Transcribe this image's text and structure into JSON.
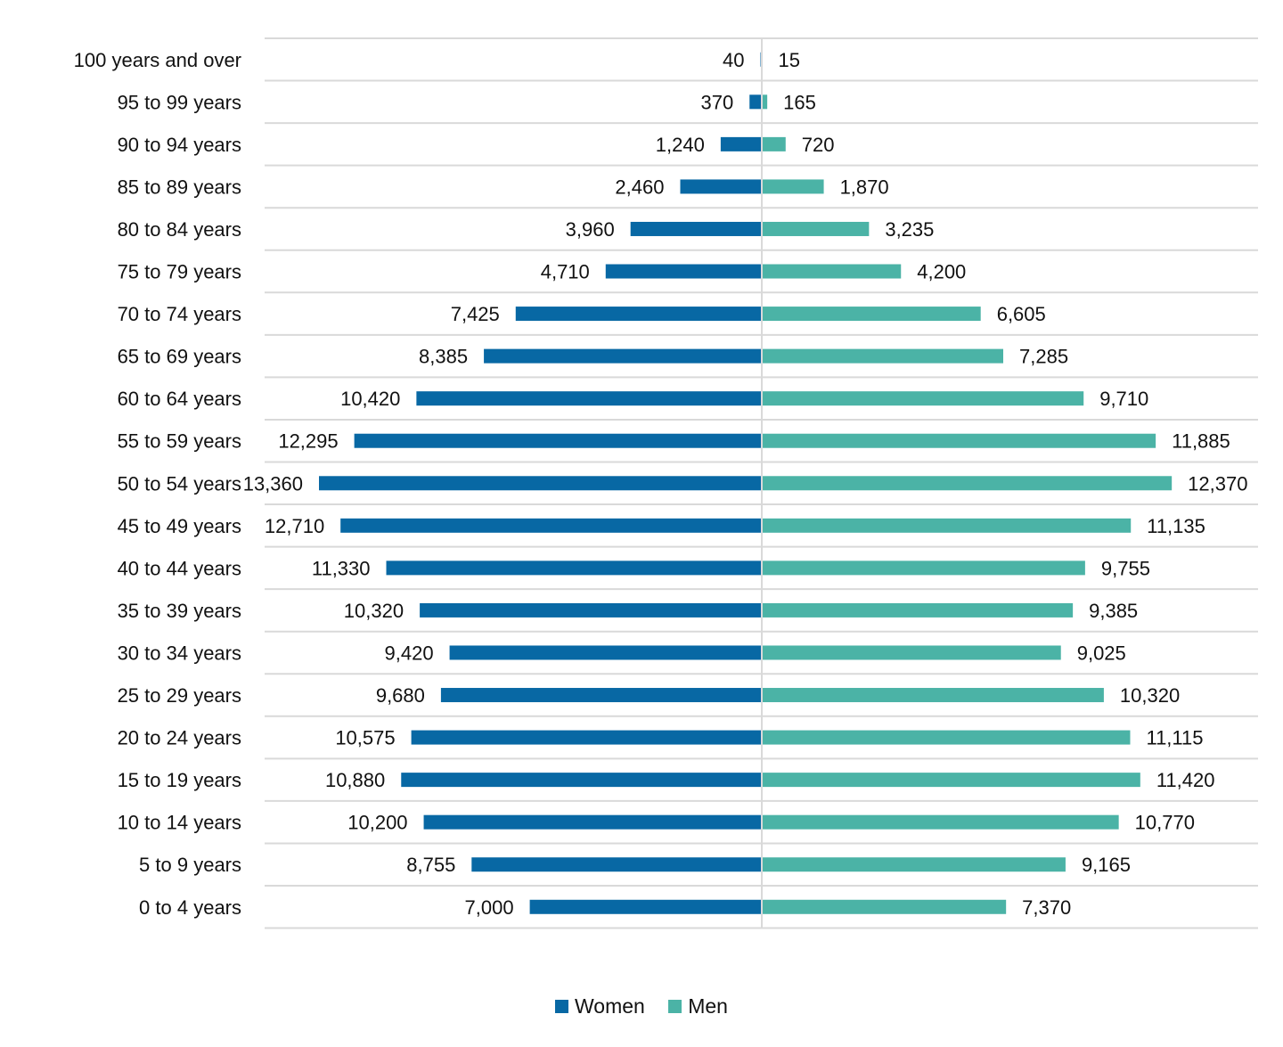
{
  "chart_data": {
    "type": "bar",
    "orientation": "horizontal",
    "layout": "population-pyramid",
    "categories": [
      "100 years and over",
      "95 to 99 years",
      "90 to 94 years",
      "85 to 89 years",
      "80 to 84 years",
      "75 to 79 years",
      "70 to 74 years",
      "65 to 69 years",
      "60 to 64 years",
      "55 to 59 years",
      "50 to 54 years",
      "45 to 49 years",
      "40 to 44 years",
      "35 to 39 years",
      "30 to 34 years",
      "25 to 29 years",
      "20 to 24 years",
      "15 to 19 years",
      "10 to 14 years",
      "5 to 9 years",
      "0 to 4 years"
    ],
    "series": [
      {
        "name": "Women",
        "color": "#0868A4",
        "side": "left",
        "values": [
          40,
          370,
          1240,
          2460,
          3960,
          4710,
          7425,
          8385,
          10420,
          12295,
          13360,
          12710,
          11330,
          10320,
          9420,
          9680,
          10575,
          10880,
          10200,
          8755,
          7000
        ],
        "labels": [
          "40",
          "370",
          "1,240",
          "2,460",
          "3,960",
          "4,710",
          "7,425",
          "8,385",
          "10,420",
          "12,295",
          "13,360",
          "12,710",
          "11,330",
          "10,320",
          "9,420",
          "9,680",
          "10,575",
          "10,880",
          "10,200",
          "8,755",
          "7,000"
        ]
      },
      {
        "name": "Men",
        "color": "#4BB3A6",
        "side": "right",
        "values": [
          15,
          165,
          720,
          1870,
          3235,
          4200,
          6605,
          7285,
          9710,
          11885,
          12370,
          11135,
          9755,
          9385,
          9025,
          10320,
          11115,
          11420,
          10770,
          9165,
          7370
        ],
        "labels": [
          "15",
          "165",
          "720",
          "1,870",
          "3,235",
          "4,200",
          "6,605",
          "7,285",
          "9,710",
          "11,885",
          "12,370",
          "11,135",
          "9,755",
          "9,385",
          "9,025",
          "10,320",
          "11,115",
          "11,420",
          "10,770",
          "9,165",
          "7,370"
        ]
      }
    ],
    "grid": "horizontal row separators",
    "legend_position": "bottom"
  }
}
